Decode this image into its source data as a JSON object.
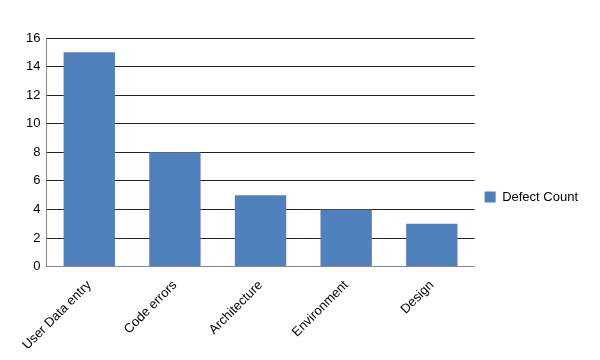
{
  "chart_data": {
    "type": "bar",
    "categories": [
      "User Data entry",
      "Code errors",
      "Architecture",
      "Environment",
      "Design"
    ],
    "series": [
      {
        "name": "Defect Count",
        "color": "#4f81bd",
        "values": [
          15,
          8,
          5,
          4,
          3
        ]
      }
    ],
    "ylim": [
      0,
      16
    ],
    "yticks": [
      0,
      2,
      4,
      6,
      8,
      10,
      12,
      14,
      16
    ],
    "grid": true,
    "legend": "right"
  }
}
